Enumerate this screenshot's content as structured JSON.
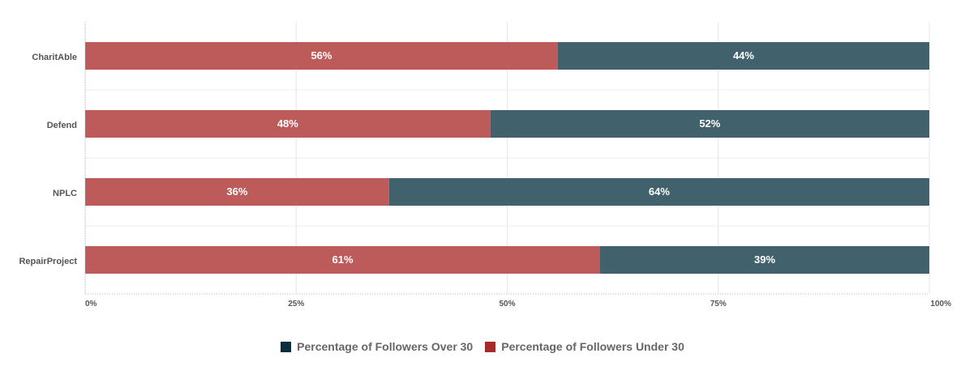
{
  "chart_data": {
    "type": "bar",
    "orientation": "horizontal",
    "stacked": true,
    "categories": [
      "CharitAble",
      "Defend",
      "NPLC",
      "RepairProject"
    ],
    "series": [
      {
        "name": "Percentage of Followers Under 30",
        "color": "#bd5b5b",
        "legend_color": "#a52a2a",
        "values": [
          56,
          48,
          36,
          61
        ],
        "labels": [
          "56%",
          "48%",
          "36%",
          "61%"
        ]
      },
      {
        "name": "Percentage of Followers Over 30",
        "color": "#41616d",
        "legend_color": "#0f2e3d",
        "values": [
          44,
          52,
          64,
          39
        ],
        "labels": [
          "44%",
          "52%",
          "64%",
          "39%"
        ]
      }
    ],
    "xlim": [
      0,
      100
    ],
    "xticks": [
      0,
      25,
      50,
      75,
      100
    ],
    "xtick_labels": [
      "0%",
      "25%",
      "50%",
      "75%",
      "100%"
    ],
    "grid": true,
    "legend_position": "bottom-center",
    "title": "",
    "xlabel": "",
    "ylabel": ""
  },
  "legend": {
    "items": [
      {
        "label": "Percentage of Followers Over 30",
        "color": "#0f2e3d"
      },
      {
        "label": "Percentage of Followers Under 30",
        "color": "#a52a2a"
      }
    ]
  }
}
